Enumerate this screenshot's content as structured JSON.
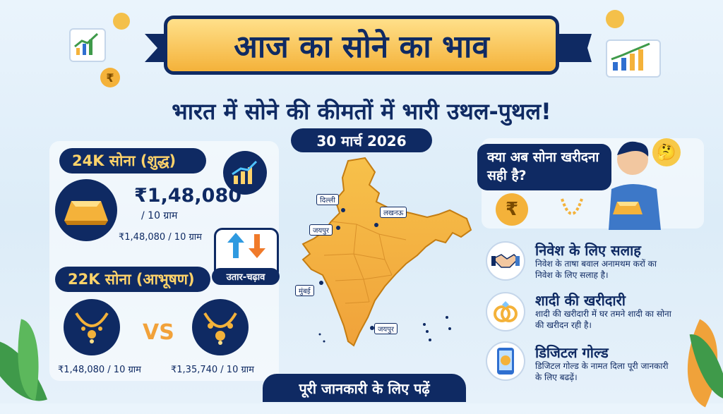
{
  "title": "आज का सोने का भाव",
  "subtitle": "भारत में सोने की कीमतों में भारी उथल-पुथल!",
  "date": "30 मार्च 2026",
  "gold24k": {
    "label": "24K सोना (शुद्ध)",
    "price": "₹1,48,080",
    "unit": "/ 10 ग्राम",
    "price_small": "₹1,48,080 / 10 ग्राम"
  },
  "updown_label": "उतार-चढ़ाव",
  "gold22k": {
    "label": "22K सोना (आभूषण)",
    "vs": "VS",
    "left_caption": "₹1,48,080 / 10 ग्राम",
    "right_caption": "₹1,35,740 / 10 ग्राम"
  },
  "map": {
    "cities": [
      "दिल्ली",
      "लखनऊ",
      "जयपुर",
      "मुंबई",
      "जयपुर"
    ]
  },
  "question": "क्या अब सोना खरीदना सही है?",
  "tips": [
    {
      "title": "निवेश के लिए सलाह",
      "text": "निवेश के ताषा बवाल अनामथम करों का निवेश के लिए सलाह है।",
      "icon": "handshake-icon"
    },
    {
      "title": "शादी की खरीदारी",
      "text": "शादी की खरीदारी में घर तमने शादी का सोना की खरीदन रही है।",
      "icon": "rings-icon"
    },
    {
      "title": "डिजिटल गोल्ड",
      "text": "डिजिटल गोल्ड के नामत दिला पूरी जानकारी के लिए बढढ़ें।",
      "icon": "phone-coin-icon"
    }
  ],
  "footer": "पूरी जानकारी के लिए पढ़ें",
  "colors": {
    "navy": "#0f2a63",
    "gold": "#f4b23a",
    "light_bg": "#eaf4fc"
  }
}
